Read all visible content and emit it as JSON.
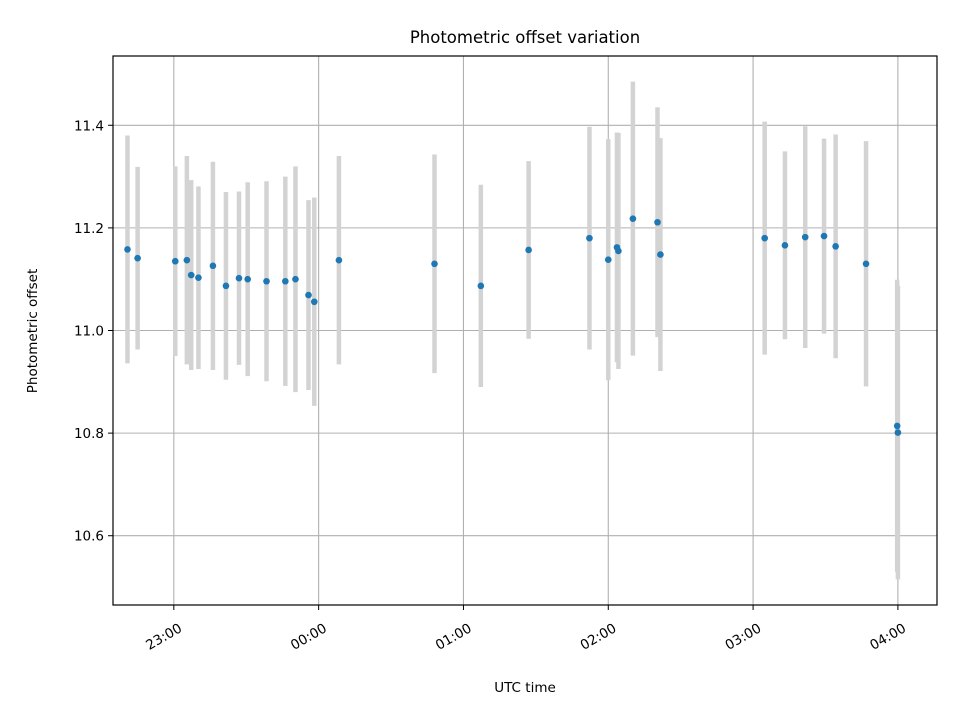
{
  "chart_data": {
    "type": "scatter",
    "title": "Photometric offset variation",
    "xlabel": "UTC time",
    "ylabel": "Photometric offset",
    "x_unit": "hours from 22:00",
    "xlim": [
      0.58,
      6.27
    ],
    "ylim": [
      10.465,
      11.535
    ],
    "x_ticks": [
      {
        "value": 1,
        "label": "23:00"
      },
      {
        "value": 2,
        "label": "00:00"
      },
      {
        "value": 3,
        "label": "01:00"
      },
      {
        "value": 4,
        "label": "02:00"
      },
      {
        "value": 5,
        "label": "03:00"
      },
      {
        "value": 6,
        "label": "04:00"
      }
    ],
    "y_ticks": [
      {
        "value": 10.6,
        "label": "10.6"
      },
      {
        "value": 10.8,
        "label": "10.8"
      },
      {
        "value": 11.0,
        "label": "11.0"
      },
      {
        "value": 11.2,
        "label": "11.2"
      },
      {
        "value": 11.4,
        "label": "11.4"
      }
    ],
    "grid": true,
    "marker_color": "#1f77b4",
    "errorbar_color": "#d3d3d3",
    "points": [
      {
        "x": 0.68,
        "y": 11.158,
        "err": 0.222
      },
      {
        "x": 0.75,
        "y": 11.141,
        "err": 0.178
      },
      {
        "x": 1.01,
        "y": 11.135,
        "err": 0.185
      },
      {
        "x": 1.09,
        "y": 11.137,
        "err": 0.203
      },
      {
        "x": 1.12,
        "y": 11.108,
        "err": 0.185
      },
      {
        "x": 1.17,
        "y": 11.103,
        "err": 0.178
      },
      {
        "x": 1.27,
        "y": 11.126,
        "err": 0.203
      },
      {
        "x": 1.36,
        "y": 11.087,
        "err": 0.183
      },
      {
        "x": 1.45,
        "y": 11.102,
        "err": 0.169
      },
      {
        "x": 1.51,
        "y": 11.1,
        "err": 0.189
      },
      {
        "x": 1.64,
        "y": 11.096,
        "err": 0.195
      },
      {
        "x": 1.77,
        "y": 11.096,
        "err": 0.204
      },
      {
        "x": 1.84,
        "y": 11.1,
        "err": 0.22
      },
      {
        "x": 1.93,
        "y": 11.069,
        "err": 0.185
      },
      {
        "x": 1.97,
        "y": 11.056,
        "err": 0.203
      },
      {
        "x": 2.14,
        "y": 11.137,
        "err": 0.203
      },
      {
        "x": 2.8,
        "y": 11.13,
        "err": 0.213
      },
      {
        "x": 3.12,
        "y": 11.087,
        "err": 0.197
      },
      {
        "x": 3.45,
        "y": 11.157,
        "err": 0.173
      },
      {
        "x": 3.87,
        "y": 11.18,
        "err": 0.217
      },
      {
        "x": 4.0,
        "y": 11.138,
        "err": 0.235
      },
      {
        "x": 4.06,
        "y": 11.162,
        "err": 0.224
      },
      {
        "x": 4.07,
        "y": 11.155,
        "err": 0.23
      },
      {
        "x": 4.17,
        "y": 11.218,
        "err": 0.267
      },
      {
        "x": 4.34,
        "y": 11.211,
        "err": 0.224
      },
      {
        "x": 4.36,
        "y": 11.148,
        "err": 0.227
      },
      {
        "x": 5.08,
        "y": 11.18,
        "err": 0.227
      },
      {
        "x": 5.22,
        "y": 11.166,
        "err": 0.183
      },
      {
        "x": 5.36,
        "y": 11.182,
        "err": 0.216
      },
      {
        "x": 5.49,
        "y": 11.184,
        "err": 0.19
      },
      {
        "x": 5.57,
        "y": 11.164,
        "err": 0.218
      },
      {
        "x": 5.78,
        "y": 11.13,
        "err": 0.239
      },
      {
        "x": 5.995,
        "y": 10.814,
        "err": 0.285
      },
      {
        "x": 6.0,
        "y": 10.801,
        "err": 0.286
      }
    ]
  }
}
